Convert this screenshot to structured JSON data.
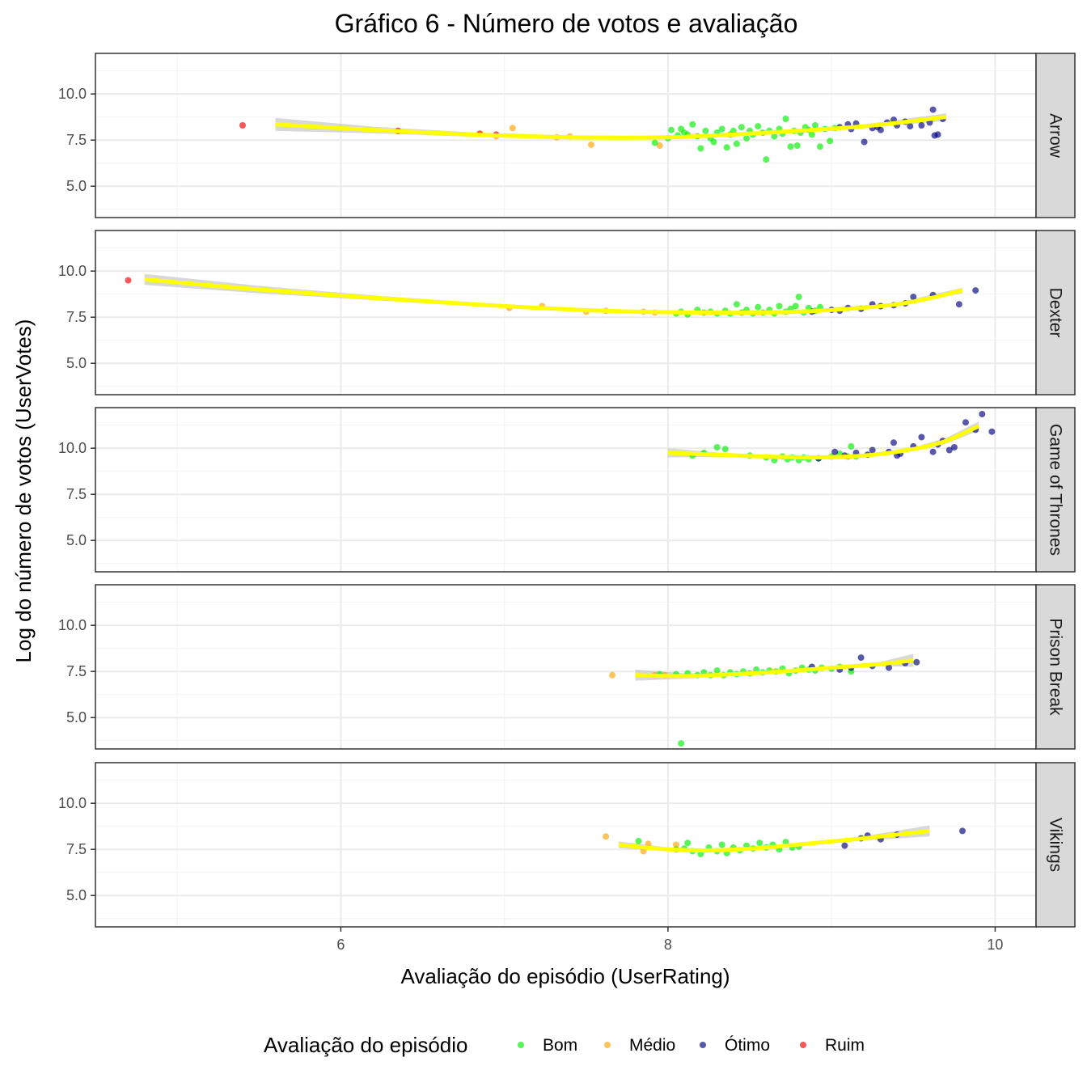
{
  "chart_data": {
    "type": "scatter",
    "title": "Gráfico 6 - Número de votos e avaliação",
    "xlabel": "Avaliação do episódio (UserRating)",
    "ylabel": "Log do número de votos (UserVotes)",
    "xlim": [
      4.5,
      10.25
    ],
    "ylim": [
      3.3,
      12.2
    ],
    "x_ticks": [
      6,
      8,
      10
    ],
    "x_tick_labels": [
      "6",
      "8",
      "10"
    ],
    "y_ticks": [
      5.0,
      7.5,
      10.0
    ],
    "y_tick_labels": [
      "5.0",
      "7.5",
      "10.0"
    ],
    "grid": true,
    "legend": {
      "title": "Avaliação do episódio",
      "position": "bottom",
      "entries": [
        {
          "key": "Bom",
          "label": "Bom",
          "color": "#00ee00"
        },
        {
          "key": "Medio",
          "label": "Médio",
          "color": "#ffa500"
        },
        {
          "key": "Otimo",
          "label": "Ótimo",
          "color": "#000080"
        },
        {
          "key": "Ruim",
          "label": "Ruim",
          "color": "#ee0000"
        }
      ]
    },
    "smooth": {
      "color": "#ffff00",
      "band_color": "#bebebe"
    },
    "panels": [
      {
        "name": "Arrow",
        "smooth": {
          "x": [
            5.6,
            6.2,
            6.8,
            7.4,
            8.0,
            8.6,
            9.2,
            9.7
          ],
          "y": [
            8.35,
            8.05,
            7.8,
            7.65,
            7.65,
            7.9,
            8.25,
            8.75
          ],
          "se": [
            0.35,
            0.18,
            0.12,
            0.1,
            0.08,
            0.08,
            0.1,
            0.2
          ]
        },
        "points": {
          "Ruim": [
            [
              5.4,
              8.3
            ],
            [
              6.35,
              8.0
            ],
            [
              6.85,
              7.85
            ],
            [
              6.95,
              7.8
            ]
          ],
          "Medio": [
            [
              6.95,
              7.7
            ],
            [
              7.05,
              8.15
            ],
            [
              7.32,
              7.65
            ],
            [
              7.4,
              7.7
            ],
            [
              7.53,
              7.25
            ],
            [
              7.95,
              7.2
            ]
          ],
          "Bom": [
            [
              7.92,
              7.35
            ],
            [
              8.0,
              7.6
            ],
            [
              8.02,
              8.05
            ],
            [
              8.06,
              7.75
            ],
            [
              8.08,
              8.1
            ],
            [
              8.1,
              7.9
            ],
            [
              8.12,
              7.8
            ],
            [
              8.15,
              8.35
            ],
            [
              8.18,
              7.7
            ],
            [
              8.2,
              7.05
            ],
            [
              8.23,
              8.0
            ],
            [
              8.26,
              7.6
            ],
            [
              8.28,
              7.4
            ],
            [
              8.3,
              7.9
            ],
            [
              8.33,
              8.1
            ],
            [
              8.36,
              7.1
            ],
            [
              8.38,
              7.8
            ],
            [
              8.4,
              8.0
            ],
            [
              8.42,
              7.3
            ],
            [
              8.45,
              8.2
            ],
            [
              8.48,
              7.6
            ],
            [
              8.5,
              8.0
            ],
            [
              8.52,
              7.8
            ],
            [
              8.55,
              8.25
            ],
            [
              8.58,
              7.9
            ],
            [
              8.6,
              6.45
            ],
            [
              8.62,
              8.0
            ],
            [
              8.65,
              7.7
            ],
            [
              8.68,
              8.1
            ],
            [
              8.7,
              7.85
            ],
            [
              8.72,
              8.65
            ],
            [
              8.75,
              7.15
            ],
            [
              8.77,
              8.0
            ],
            [
              8.79,
              7.2
            ],
            [
              8.81,
              7.9
            ],
            [
              8.84,
              8.2
            ],
            [
              8.86,
              8.05
            ],
            [
              8.88,
              7.8
            ],
            [
              8.9,
              8.3
            ],
            [
              8.93,
              7.15
            ],
            [
              8.96,
              8.1
            ],
            [
              8.99,
              7.45
            ],
            [
              9.02,
              8.15
            ]
          ],
          "Otimo": [
            [
              9.05,
              8.2
            ],
            [
              9.1,
              8.35
            ],
            [
              9.12,
              8.1
            ],
            [
              9.15,
              8.4
            ],
            [
              9.2,
              7.4
            ],
            [
              9.25,
              8.15
            ],
            [
              9.28,
              8.2
            ],
            [
              9.3,
              8.05
            ],
            [
              9.34,
              8.45
            ],
            [
              9.38,
              8.6
            ],
            [
              9.4,
              8.3
            ],
            [
              9.45,
              8.5
            ],
            [
              9.48,
              8.25
            ],
            [
              9.55,
              8.3
            ],
            [
              9.6,
              8.45
            ],
            [
              9.62,
              9.15
            ],
            [
              9.63,
              7.75
            ],
            [
              9.65,
              7.8
            ],
            [
              9.68,
              8.65
            ]
          ]
        }
      },
      {
        "name": "Dexter",
        "smooth": {
          "x": [
            4.8,
            5.5,
            6.2,
            6.9,
            7.6,
            8.2,
            8.8,
            9.4,
            9.8
          ],
          "y": [
            9.55,
            9.0,
            8.55,
            8.15,
            7.85,
            7.75,
            7.8,
            8.2,
            8.95
          ],
          "se": [
            0.3,
            0.2,
            0.13,
            0.1,
            0.08,
            0.07,
            0.07,
            0.09,
            0.15
          ]
        },
        "points": {
          "Ruim": [
            [
              4.7,
              9.5
            ]
          ],
          "Medio": [
            [
              7.03,
              8.0
            ],
            [
              7.23,
              8.1
            ],
            [
              7.5,
              7.8
            ],
            [
              7.62,
              7.85
            ],
            [
              7.85,
              7.8
            ],
            [
              7.92,
              7.75
            ]
          ],
          "Bom": [
            [
              8.05,
              7.7
            ],
            [
              8.08,
              7.8
            ],
            [
              8.12,
              7.65
            ],
            [
              8.18,
              7.9
            ],
            [
              8.22,
              7.75
            ],
            [
              8.26,
              7.8
            ],
            [
              8.3,
              7.7
            ],
            [
              8.35,
              7.85
            ],
            [
              8.38,
              7.7
            ],
            [
              8.42,
              8.2
            ],
            [
              8.45,
              7.75
            ],
            [
              8.48,
              7.9
            ],
            [
              8.52,
              7.7
            ],
            [
              8.55,
              8.05
            ],
            [
              8.58,
              7.75
            ],
            [
              8.62,
              7.9
            ],
            [
              8.65,
              7.7
            ],
            [
              8.68,
              8.1
            ],
            [
              8.72,
              7.8
            ],
            [
              8.75,
              7.95
            ],
            [
              8.78,
              8.1
            ],
            [
              8.8,
              8.6
            ],
            [
              8.83,
              7.75
            ],
            [
              8.86,
              8.0
            ],
            [
              8.9,
              7.85
            ],
            [
              8.93,
              8.05
            ]
          ],
          "Otimo": [
            [
              8.88,
              7.8
            ],
            [
              9.0,
              7.9
            ],
            [
              9.05,
              7.85
            ],
            [
              9.1,
              8.0
            ],
            [
              9.18,
              7.95
            ],
            [
              9.25,
              8.2
            ],
            [
              9.3,
              8.1
            ],
            [
              9.38,
              8.15
            ],
            [
              9.45,
              8.25
            ],
            [
              9.5,
              8.6
            ],
            [
              9.62,
              8.7
            ],
            [
              9.78,
              8.2
            ],
            [
              9.88,
              8.95
            ]
          ]
        }
      },
      {
        "name": "Game of Thrones",
        "smooth": {
          "x": [
            8.0,
            8.3,
            8.6,
            8.9,
            9.2,
            9.5,
            9.7,
            9.9
          ],
          "y": [
            9.75,
            9.65,
            9.55,
            9.5,
            9.6,
            9.95,
            10.4,
            11.2
          ],
          "se": [
            0.25,
            0.12,
            0.08,
            0.07,
            0.08,
            0.1,
            0.15,
            0.25
          ]
        },
        "points": {
          "Bom": [
            [
              8.15,
              9.6
            ],
            [
              8.22,
              9.75
            ],
            [
              8.3,
              10.05
            ],
            [
              8.35,
              9.95
            ],
            [
              8.5,
              9.6
            ],
            [
              8.6,
              9.5
            ],
            [
              8.65,
              9.35
            ],
            [
              8.7,
              9.55
            ],
            [
              8.73,
              9.4
            ],
            [
              8.76,
              9.5
            ],
            [
              8.8,
              9.35
            ],
            [
              8.83,
              9.5
            ],
            [
              8.86,
              9.4
            ],
            [
              8.92,
              9.45
            ],
            [
              9.0,
              9.55
            ],
            [
              9.05,
              9.7
            ],
            [
              9.1,
              9.55
            ],
            [
              9.12,
              10.1
            ],
            [
              9.15,
              9.55
            ]
          ],
          "Otimo": [
            [
              8.92,
              9.45
            ],
            [
              9.02,
              9.8
            ],
            [
              9.08,
              9.6
            ],
            [
              9.15,
              9.75
            ],
            [
              9.22,
              9.65
            ],
            [
              9.25,
              9.9
            ],
            [
              9.35,
              9.8
            ],
            [
              9.38,
              10.3
            ],
            [
              9.4,
              9.6
            ],
            [
              9.42,
              9.7
            ],
            [
              9.5,
              10.1
            ],
            [
              9.55,
              10.6
            ],
            [
              9.62,
              9.8
            ],
            [
              9.65,
              10.2
            ],
            [
              9.68,
              10.4
            ],
            [
              9.72,
              9.9
            ],
            [
              9.75,
              10.05
            ],
            [
              9.82,
              11.4
            ],
            [
              9.88,
              11.0
            ],
            [
              9.92,
              11.85
            ],
            [
              9.98,
              10.9
            ]
          ]
        }
      },
      {
        "name": "Prison Break",
        "smooth": {
          "x": [
            7.8,
            8.1,
            8.4,
            8.7,
            9.0,
            9.3,
            9.5
          ],
          "y": [
            7.3,
            7.25,
            7.35,
            7.5,
            7.7,
            7.9,
            8.1
          ],
          "se": [
            0.3,
            0.15,
            0.08,
            0.07,
            0.08,
            0.12,
            0.35
          ]
        },
        "points": {
          "Medio": [
            [
              7.66,
              7.3
            ],
            [
              7.92,
              7.3
            ],
            [
              7.98,
              7.3
            ]
          ],
          "Bom": [
            [
              7.95,
              7.35
            ],
            [
              8.05,
              7.35
            ],
            [
              8.08,
              3.6
            ],
            [
              8.12,
              7.4
            ],
            [
              8.18,
              7.3
            ],
            [
              8.22,
              7.45
            ],
            [
              8.26,
              7.3
            ],
            [
              8.3,
              7.55
            ],
            [
              8.34,
              7.3
            ],
            [
              8.38,
              7.45
            ],
            [
              8.42,
              7.35
            ],
            [
              8.46,
              7.5
            ],
            [
              8.5,
              7.4
            ],
            [
              8.54,
              7.6
            ],
            [
              8.58,
              7.45
            ],
            [
              8.62,
              7.55
            ],
            [
              8.66,
              7.5
            ],
            [
              8.7,
              7.65
            ],
            [
              8.74,
              7.4
            ],
            [
              8.78,
              7.55
            ],
            [
              8.82,
              7.7
            ],
            [
              8.86,
              7.6
            ],
            [
              8.9,
              7.55
            ],
            [
              8.94,
              7.7
            ],
            [
              9.0,
              7.65
            ],
            [
              9.05,
              7.75
            ],
            [
              9.12,
              7.5
            ]
          ],
          "Otimo": [
            [
              8.88,
              7.75
            ],
            [
              9.05,
              7.6
            ],
            [
              9.12,
              7.7
            ],
            [
              9.18,
              8.25
            ],
            [
              9.25,
              7.8
            ],
            [
              9.35,
              7.7
            ],
            [
              9.45,
              7.95
            ],
            [
              9.52,
              8.0
            ]
          ]
        }
      },
      {
        "name": "Vikings",
        "smooth": {
          "x": [
            7.7,
            8.0,
            8.3,
            8.6,
            8.9,
            9.2,
            9.6
          ],
          "y": [
            7.75,
            7.5,
            7.45,
            7.6,
            7.85,
            8.1,
            8.5
          ],
          "se": [
            0.18,
            0.1,
            0.07,
            0.07,
            0.08,
            0.12,
            0.3
          ]
        },
        "points": {
          "Medio": [
            [
              7.62,
              8.2
            ],
            [
              7.85,
              7.4
            ],
            [
              7.88,
              7.8
            ],
            [
              8.05,
              7.75
            ]
          ],
          "Bom": [
            [
              7.82,
              7.95
            ],
            [
              8.05,
              7.5
            ],
            [
              8.1,
              7.55
            ],
            [
              8.12,
              7.85
            ],
            [
              8.15,
              7.4
            ],
            [
              8.2,
              7.25
            ],
            [
              8.25,
              7.6
            ],
            [
              8.3,
              7.4
            ],
            [
              8.33,
              7.75
            ],
            [
              8.36,
              7.3
            ],
            [
              8.4,
              7.6
            ],
            [
              8.44,
              7.45
            ],
            [
              8.48,
              7.7
            ],
            [
              8.52,
              7.55
            ],
            [
              8.56,
              7.85
            ],
            [
              8.6,
              7.6
            ],
            [
              8.64,
              7.75
            ],
            [
              8.68,
              7.5
            ],
            [
              8.72,
              7.9
            ],
            [
              8.76,
              7.6
            ],
            [
              8.8,
              7.65
            ]
          ],
          "Otimo": [
            [
              9.08,
              7.7
            ],
            [
              9.18,
              8.1
            ],
            [
              9.22,
              8.25
            ],
            [
              9.3,
              8.05
            ],
            [
              9.4,
              8.3
            ],
            [
              9.8,
              8.5
            ]
          ]
        }
      }
    ]
  }
}
